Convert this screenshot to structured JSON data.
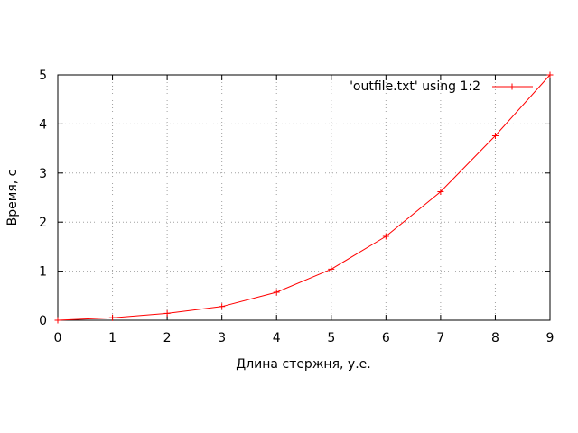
{
  "chart_data": {
    "type": "line",
    "title": "",
    "xlabel": "Длина стержня, у.е.",
    "ylabel": "Время, с",
    "xlim": [
      0,
      9
    ],
    "ylim": [
      0,
      5
    ],
    "xticks": [
      0,
      1,
      2,
      3,
      4,
      5,
      6,
      7,
      8,
      9
    ],
    "yticks": [
      0,
      1,
      2,
      3,
      4,
      5
    ],
    "grid": true,
    "legend_position": "top-right",
    "series": [
      {
        "name": "'outfile.txt' using 1:2",
        "color": "#ff0000",
        "marker": "plus",
        "x": [
          0,
          1,
          2,
          3,
          4,
          5,
          6,
          7,
          8,
          9
        ],
        "y": [
          0.0,
          0.05,
          0.14,
          0.28,
          0.57,
          1.04,
          1.71,
          2.62,
          3.76,
          5.0
        ]
      }
    ]
  }
}
